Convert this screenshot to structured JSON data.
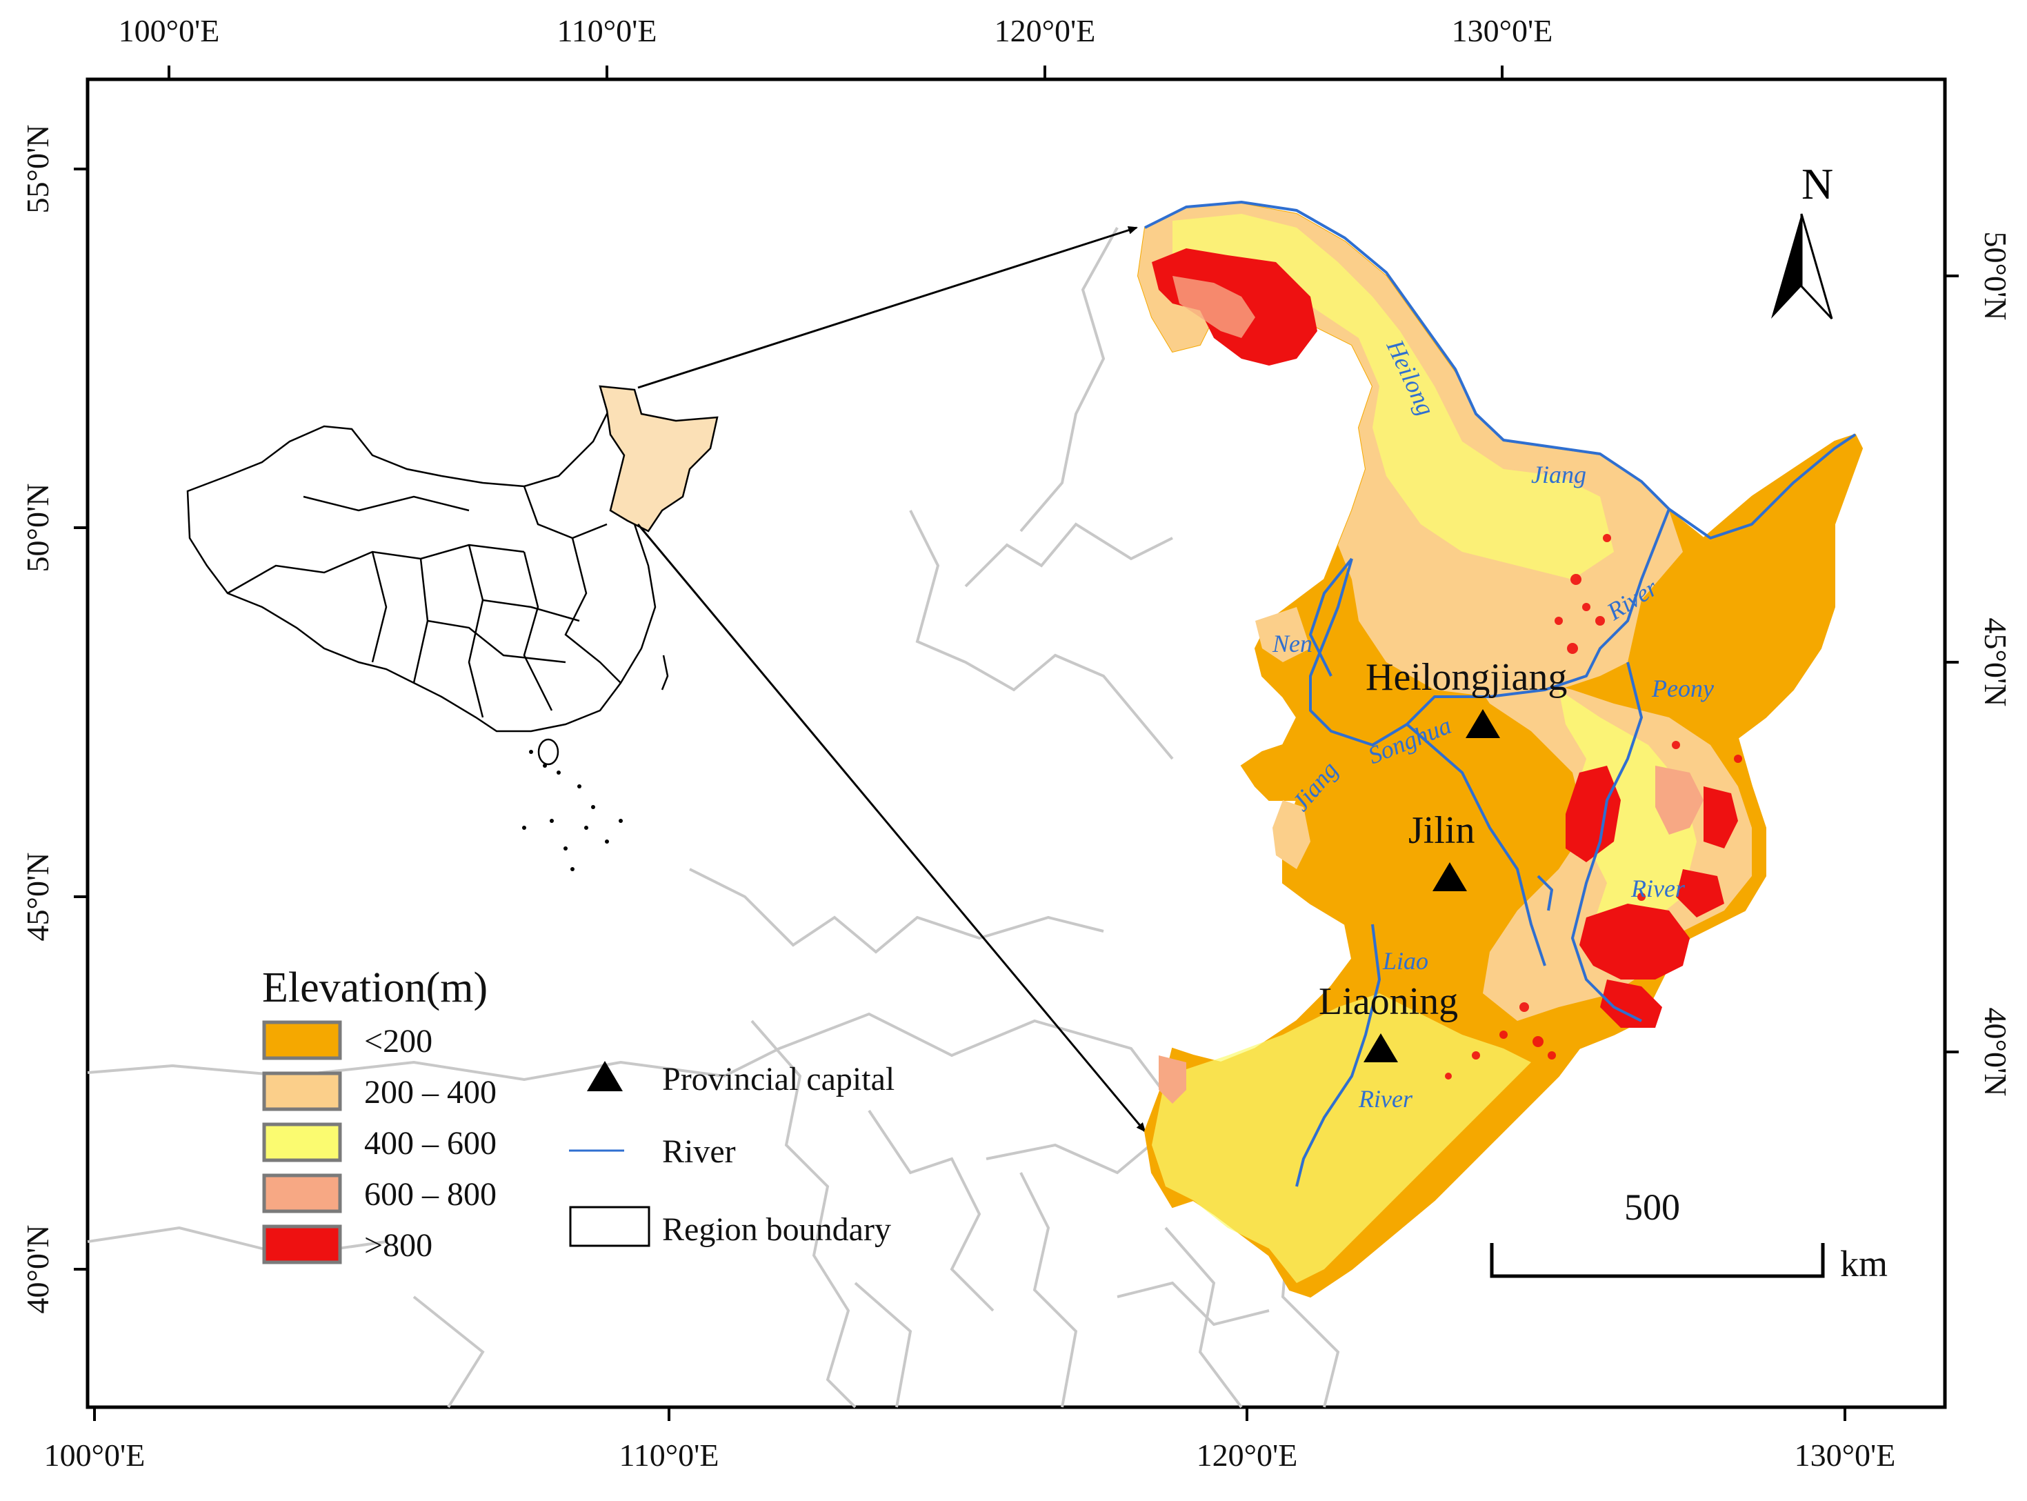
{
  "map": {
    "top_axis_labels": [
      "100°0'E",
      "110°0'E",
      "120°0'E",
      "130°0'E"
    ],
    "bottom_axis_labels": [
      "100°0'E",
      "110°0'E",
      "120°0'E",
      "130°0'E"
    ],
    "left_axis_labels": [
      "55°0'N",
      "50°0'N",
      "45°0'N",
      "40°0'N"
    ],
    "right_axis_labels": [
      "50°0'N",
      "45°0'N",
      "40°0'N"
    ],
    "north_arrow_label": "N",
    "province_labels": [
      "Heilongjiang",
      "Jilin",
      "Liaoning"
    ],
    "river_labels": [
      "Heilong",
      "Jiang",
      "River",
      "Nen",
      "Songhua",
      "Jiang",
      "Peony",
      "River",
      "Liao",
      "River"
    ],
    "legend": {
      "title": "Elevation(m)",
      "elevation_classes": [
        {
          "label": "<200",
          "color": "#f5a800"
        },
        {
          "label": "200 – 400",
          "color": "#fbcf8a"
        },
        {
          "label": "400 – 600",
          "color": "#fbfb70"
        },
        {
          "label": "600 – 800",
          "color": "#f7a884"
        },
        {
          "label": ">800",
          "color": "#ee1111"
        }
      ],
      "symbols": [
        {
          "label": "Provincial capital",
          "symbol": "triangle-icon"
        },
        {
          "label": "River",
          "symbol": "line-icon",
          "color": "#2f6fd0"
        },
        {
          "label": "Region boundary",
          "symbol": "box-icon"
        }
      ]
    },
    "scale_bar": {
      "value": "500",
      "unit": "km"
    },
    "colors": {
      "background_boundaries": "#c8c8c8",
      "river": "#2f6fd0",
      "highlight_region": "#fbe0b6",
      "frame": "#000000"
    }
  }
}
